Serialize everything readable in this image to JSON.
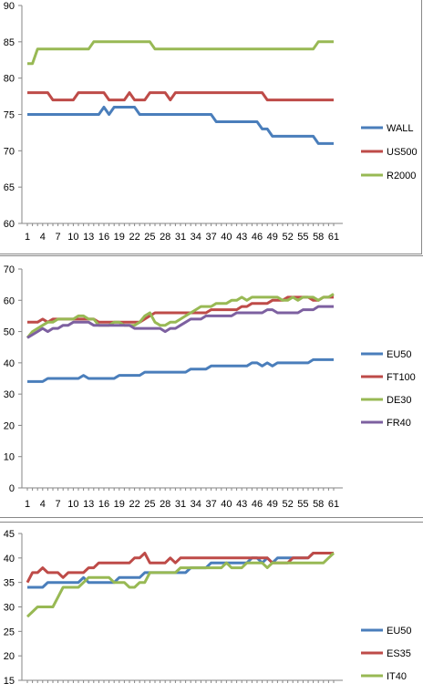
{
  "chart_data": [
    {
      "type": "line",
      "title": "",
      "xlabel": "",
      "ylabel": "",
      "ylim": [
        60,
        90
      ],
      "yticks": [
        60,
        65,
        70,
        75,
        80,
        85,
        90
      ],
      "x_tick_labels": [
        "1",
        "4",
        "7",
        "10",
        "13",
        "16",
        "19",
        "22",
        "25",
        "28",
        "31",
        "34",
        "37",
        "40",
        "43",
        "46",
        "49",
        "52",
        "55",
        "58",
        "61"
      ],
      "n_points": 61,
      "grid": false,
      "legend_position": "right",
      "series": [
        {
          "name": "WALL",
          "color": "#4a7ebb",
          "values": [
            75,
            75,
            75,
            75,
            75,
            75,
            75,
            75,
            75,
            75,
            75,
            75,
            75,
            75,
            75,
            76,
            75,
            76,
            76,
            76,
            76,
            76,
            75,
            75,
            75,
            75,
            75,
            75,
            75,
            75,
            75,
            75,
            75,
            75,
            75,
            75,
            75,
            74,
            74,
            74,
            74,
            74,
            74,
            74,
            74,
            74,
            73,
            73,
            72,
            72,
            72,
            72,
            72,
            72,
            72,
            72,
            72,
            71,
            71,
            71,
            71
          ]
        },
        {
          "name": "US500",
          "color": "#be4b48",
          "values": [
            78,
            78,
            78,
            78,
            78,
            77,
            77,
            77,
            77,
            77,
            78,
            78,
            78,
            78,
            78,
            78,
            77,
            77,
            77,
            77,
            78,
            77,
            77,
            77,
            78,
            78,
            78,
            78,
            77,
            78,
            78,
            78,
            78,
            78,
            78,
            78,
            78,
            78,
            78,
            78,
            78,
            78,
            78,
            78,
            78,
            78,
            78,
            77,
            77,
            77,
            77,
            77,
            77,
            77,
            77,
            77,
            77,
            77,
            77,
            77,
            77
          ]
        },
        {
          "name": "R2000",
          "color": "#98b954",
          "values": [
            82,
            82,
            84,
            84,
            84,
            84,
            84,
            84,
            84,
            84,
            84,
            84,
            84,
            85,
            85,
            85,
            85,
            85,
            85,
            85,
            85,
            85,
            85,
            85,
            85,
            84,
            84,
            84,
            84,
            84,
            84,
            84,
            84,
            84,
            84,
            84,
            84,
            84,
            84,
            84,
            84,
            84,
            84,
            84,
            84,
            84,
            84,
            84,
            84,
            84,
            84,
            84,
            84,
            84,
            84,
            84,
            84,
            85,
            85,
            85,
            85
          ]
        }
      ]
    },
    {
      "type": "line",
      "title": "",
      "xlabel": "",
      "ylabel": "",
      "ylim": [
        0,
        70
      ],
      "yticks": [
        0,
        10,
        20,
        30,
        40,
        50,
        60,
        70
      ],
      "x_tick_labels": [
        "1",
        "4",
        "7",
        "10",
        "13",
        "16",
        "19",
        "22",
        "25",
        "28",
        "31",
        "34",
        "37",
        "40",
        "43",
        "46",
        "49",
        "52",
        "55",
        "58",
        "61"
      ],
      "n_points": 61,
      "grid": false,
      "legend_position": "right",
      "series": [
        {
          "name": "EU50",
          "color": "#4a7ebb",
          "values": [
            34,
            34,
            34,
            34,
            35,
            35,
            35,
            35,
            35,
            35,
            35,
            36,
            35,
            35,
            35,
            35,
            35,
            35,
            36,
            36,
            36,
            36,
            36,
            37,
            37,
            37,
            37,
            37,
            37,
            37,
            37,
            37,
            38,
            38,
            38,
            38,
            39,
            39,
            39,
            39,
            39,
            39,
            39,
            39,
            40,
            40,
            39,
            40,
            39,
            40,
            40,
            40,
            40,
            40,
            40,
            40,
            41,
            41,
            41,
            41,
            41
          ]
        },
        {
          "name": "FT100",
          "color": "#be4b48",
          "values": [
            53,
            53,
            53,
            54,
            53,
            54,
            54,
            54,
            54,
            54,
            54,
            54,
            54,
            54,
            53,
            53,
            53,
            53,
            53,
            53,
            53,
            53,
            53,
            54,
            55,
            56,
            56,
            56,
            56,
            56,
            56,
            56,
            56,
            56,
            56,
            56,
            57,
            57,
            57,
            57,
            57,
            57,
            58,
            58,
            59,
            59,
            59,
            59,
            60,
            60,
            60,
            61,
            61,
            61,
            61,
            61,
            60,
            60,
            61,
            61,
            61
          ]
        },
        {
          "name": "DE30",
          "color": "#98b954",
          "values": [
            48,
            50,
            51,
            52,
            53,
            53,
            54,
            54,
            54,
            54,
            55,
            55,
            54,
            54,
            52,
            52,
            52,
            53,
            53,
            52,
            52,
            52,
            53,
            55,
            56,
            53,
            52,
            52,
            53,
            53,
            54,
            55,
            56,
            57,
            58,
            58,
            58,
            59,
            59,
            59,
            60,
            60,
            61,
            60,
            61,
            61,
            61,
            61,
            61,
            61,
            60,
            60,
            61,
            60,
            61,
            61,
            61,
            60,
            61,
            61,
            62
          ]
        },
        {
          "name": "FR40",
          "color": "#7d60a0",
          "values": [
            48,
            49,
            50,
            51,
            50,
            51,
            51,
            52,
            52,
            53,
            53,
            53,
            53,
            52,
            52,
            52,
            52,
            52,
            52,
            52,
            52,
            51,
            51,
            51,
            51,
            51,
            51,
            50,
            51,
            51,
            52,
            53,
            54,
            54,
            54,
            55,
            55,
            55,
            55,
            55,
            55,
            56,
            56,
            56,
            56,
            56,
            56,
            57,
            57,
            56,
            56,
            56,
            56,
            56,
            57,
            57,
            57,
            58,
            58,
            58,
            58
          ]
        }
      ]
    },
    {
      "type": "line",
      "title": "",
      "xlabel": "",
      "ylabel": "",
      "ylim": [
        15,
        45
      ],
      "yticks": [
        15,
        20,
        25,
        30,
        35,
        40,
        45
      ],
      "n_points": 61,
      "grid": false,
      "legend_position": "right",
      "series": [
        {
          "name": "EU50",
          "color": "#4a7ebb",
          "values": [
            34,
            34,
            34,
            34,
            35,
            35,
            35,
            35,
            35,
            35,
            35,
            36,
            35,
            35,
            35,
            35,
            35,
            35,
            36,
            36,
            36,
            36,
            36,
            37,
            37,
            37,
            37,
            37,
            37,
            37,
            37,
            37,
            38,
            38,
            38,
            38,
            39,
            39,
            39,
            39,
            39,
            39,
            39,
            39,
            40,
            40,
            39,
            40,
            39,
            40,
            40,
            40,
            40,
            40,
            40,
            40,
            41,
            41,
            41,
            41,
            41
          ]
        },
        {
          "name": "ES35",
          "color": "#be4b48",
          "values": [
            35,
            37,
            37,
            38,
            37,
            37,
            37,
            36,
            37,
            37,
            37,
            37,
            38,
            38,
            39,
            39,
            39,
            39,
            39,
            39,
            39,
            40,
            40,
            41,
            39,
            39,
            39,
            39,
            40,
            39,
            40,
            40,
            40,
            40,
            40,
            40,
            40,
            40,
            40,
            40,
            40,
            40,
            40,
            40,
            40,
            40,
            40,
            40,
            39,
            39,
            39,
            39,
            40,
            40,
            40,
            40,
            41,
            41,
            41,
            41,
            41
          ]
        },
        {
          "name": "IT40",
          "color": "#98b954",
          "values": [
            28,
            29,
            30,
            30,
            30,
            30,
            32,
            34,
            34,
            34,
            34,
            35,
            36,
            36,
            36,
            36,
            36,
            35,
            35,
            35,
            34,
            34,
            35,
            35,
            37,
            37,
            37,
            37,
            37,
            37,
            38,
            38,
            38,
            38,
            38,
            38,
            38,
            38,
            38,
            39,
            38,
            38,
            38,
            39,
            39,
            39,
            39,
            38,
            39,
            39,
            39,
            39,
            39,
            39,
            39,
            39,
            39,
            39,
            39,
            40,
            41
          ]
        }
      ]
    }
  ]
}
